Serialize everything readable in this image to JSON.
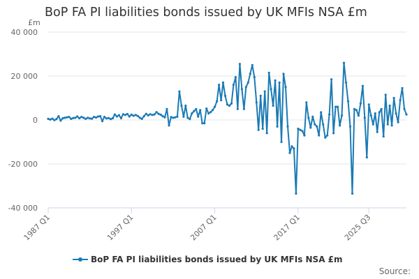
{
  "chart_data": {
    "type": "line",
    "title": "BoP FA PI liabilities bonds issued by UK MFIs NSA £m",
    "unit_label": "£m",
    "ylim": [
      -40000,
      40000
    ],
    "yticks": [
      {
        "value": 40000,
        "label": "40 000"
      },
      {
        "value": 20000,
        "label": "20 000"
      },
      {
        "value": 0,
        "label": "0"
      },
      {
        "value": -20000,
        "label": "-20 000"
      },
      {
        "value": -40000,
        "label": "-40 000"
      }
    ],
    "xticks": [
      "1987 Q1",
      "1997 Q1",
      "2007 Q1",
      "2017 Q1",
      "2025 Q3"
    ],
    "grid": true,
    "legend_position": "bottom",
    "source_label": "Source:",
    "series": [
      {
        "name": "BoP FA PI liabilities bonds issued by UK MFIs NSA £m",
        "color": "#1a7ab5",
        "start": "1987 Q1",
        "values": [
          500,
          200,
          600,
          -100,
          400,
          1700,
          -300,
          800,
          1000,
          1200,
          1400,
          500,
          900,
          1000,
          1600,
          800,
          1400,
          1000,
          500,
          1000,
          700,
          600,
          1400,
          1100,
          1600,
          1700,
          -500,
          1400,
          700,
          900,
          400,
          800,
          2500,
          1600,
          2200,
          800,
          2600,
          2300,
          2700,
          1600,
          2400,
          1900,
          2300,
          1800,
          1000,
          500,
          1700,
          2800,
          2100,
          2600,
          2300,
          2500,
          3600,
          2800,
          2400,
          1700,
          1200,
          5000,
          -2500,
          1300,
          1000,
          1200,
          1500,
          13000,
          6500,
          1500,
          6500,
          1000,
          400,
          3000,
          4000,
          5000,
          1500,
          4500,
          -1500,
          -1500,
          5200,
          3000,
          3600,
          4500,
          6000,
          8500,
          16000,
          9000,
          17000,
          11000,
          7000,
          6500,
          7500,
          16000,
          19500,
          5000,
          25500,
          14000,
          5000,
          15000,
          17000,
          21000,
          25000,
          19500,
          8000,
          -4500,
          11000,
          -4000,
          13000,
          -6000,
          21500,
          14000,
          6500,
          18000,
          -3000,
          17000,
          -10000,
          21000,
          15000,
          -3000,
          -15000,
          -12000,
          -13000,
          -33500,
          -4000,
          -4500,
          -5000,
          -7000,
          8000,
          1000,
          -3500,
          1500,
          -2000,
          -3000,
          -7000,
          3500,
          -2000,
          -8000,
          -7000,
          2500,
          18500,
          -6000,
          6000,
          6000,
          -2500,
          2000,
          26000,
          17000,
          8500,
          -3000,
          -33500,
          5000,
          4500,
          2000,
          7500,
          15500,
          1000,
          -17000,
          7000,
          2000,
          -2000,
          3000,
          -5500,
          3500,
          5000,
          -7500,
          11500,
          -2000,
          6500,
          -2500,
          10000,
          3000,
          -1000,
          9000,
          14500,
          5000,
          2500
        ]
      }
    ]
  }
}
